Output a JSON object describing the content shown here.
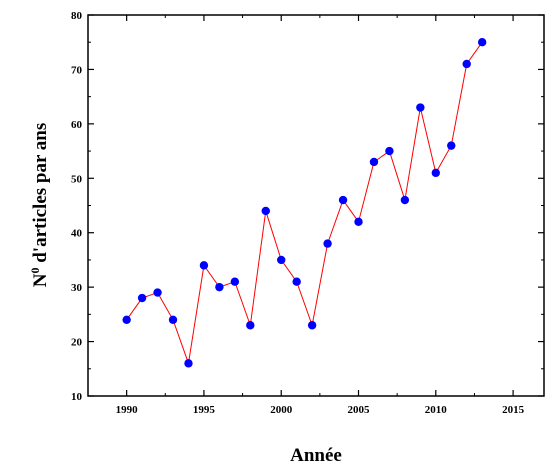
{
  "chart_data": {
    "type": "line",
    "title": "",
    "xlabel": "Année",
    "ylabel": "N",
    "ylabel_superscript": "0",
    "ylabel_rest": " d'articles par ans",
    "xlim": [
      1987.5,
      2017
    ],
    "ylim": [
      10,
      80
    ],
    "xticks": [
      1990,
      1995,
      2000,
      2005,
      2010,
      2015
    ],
    "yticks": [
      10,
      20,
      30,
      40,
      50,
      60,
      70,
      80
    ],
    "grid": false,
    "legend": "none",
    "line_color": "#ff0000",
    "marker_color": "#0000ff",
    "series": [
      {
        "x": [
          1990,
          1991,
          1992,
          1993,
          1994,
          1995,
          1996,
          1997,
          1998,
          1999,
          2000,
          2001,
          2002,
          2003,
          2004,
          2005,
          2006,
          2007,
          2008,
          2009,
          2010,
          2011,
          2012,
          2013
        ],
        "values": [
          24,
          28,
          29,
          24,
          16,
          34,
          30,
          31,
          23,
          44,
          35,
          31,
          23,
          38,
          46,
          42,
          53,
          55,
          46,
          63,
          51,
          56,
          71,
          75
        ]
      }
    ]
  }
}
